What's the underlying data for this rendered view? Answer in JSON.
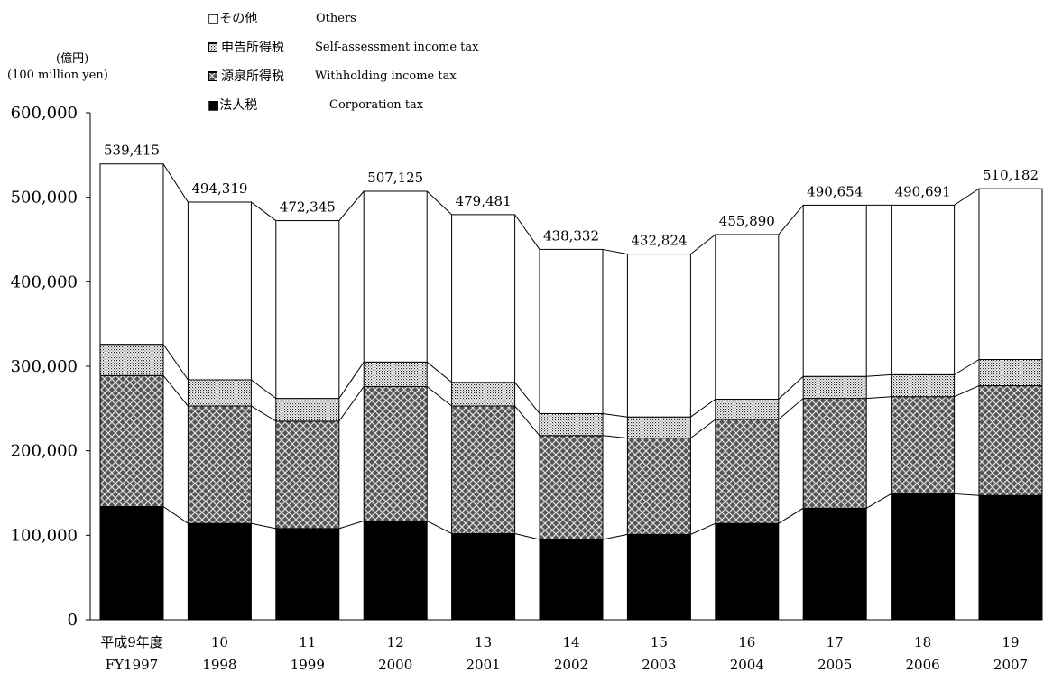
{
  "unit": {
    "jp": "(億円)",
    "en": "(100 million yen)"
  },
  "legend": [
    {
      "jp": "□その他",
      "en": "Others"
    },
    {
      "jp": "申告所得税",
      "en": "Self-assessment income tax"
    },
    {
      "jp": "源泉所得税",
      "en": "Withholding income tax"
    },
    {
      "jp": "■法人税",
      "en": "Corporation tax"
    }
  ],
  "chart_data": {
    "type": "bar",
    "stacked": true,
    "categories": [
      "平成9年度",
      "10",
      "11",
      "12",
      "13",
      "14",
      "15",
      "16",
      "17",
      "18",
      "19"
    ],
    "categories_en": [
      "FY1997",
      "1998",
      "1999",
      "2000",
      "2001",
      "2002",
      "2003",
      "2004",
      "2005",
      "2006",
      "2007"
    ],
    "series": [
      {
        "name": "法人税 Corporation tax",
        "fill": "black",
        "values": [
          134000,
          114000,
          108000,
          117000,
          102000,
          95000,
          101000,
          114000,
          132000,
          149000,
          147000
        ]
      },
      {
        "name": "源泉所得税 Withholding income tax",
        "fill": "crosshatch",
        "values": [
          155000,
          139000,
          127000,
          159000,
          151000,
          123000,
          114000,
          123000,
          130000,
          115000,
          130000
        ]
      },
      {
        "name": "申告所得税 Self-assessment income tax",
        "fill": "dotted",
        "values": [
          37000,
          31000,
          27000,
          29000,
          28000,
          26000,
          25000,
          24000,
          26000,
          26000,
          31000
        ]
      },
      {
        "name": "その他 Others",
        "fill": "white",
        "values": [
          213415,
          210319,
          210345,
          202125,
          198481,
          194332,
          192824,
          194890,
          202654,
          200691,
          202182
        ]
      }
    ],
    "totals": [
      539415,
      494319,
      472345,
      507125,
      479481,
      438332,
      432824,
      455890,
      490654,
      490691,
      510182
    ],
    "total_labels": [
      "539,415",
      "494,319",
      "472,345",
      "507,125",
      "479,481",
      "438,332",
      "432,824",
      "455,890",
      "490,654",
      "490,691",
      "510,182"
    ],
    "ylim": [
      0,
      600000
    ],
    "yticks": [
      0,
      100000,
      200000,
      300000,
      400000,
      500000,
      600000
    ],
    "ytick_labels": [
      "0",
      "100,000",
      "200,000",
      "300,000",
      "400,000",
      "500,000",
      "600,000"
    ],
    "xlabel": "",
    "ylabel": "",
    "title": "",
    "grid": false,
    "legend_position": "top"
  }
}
